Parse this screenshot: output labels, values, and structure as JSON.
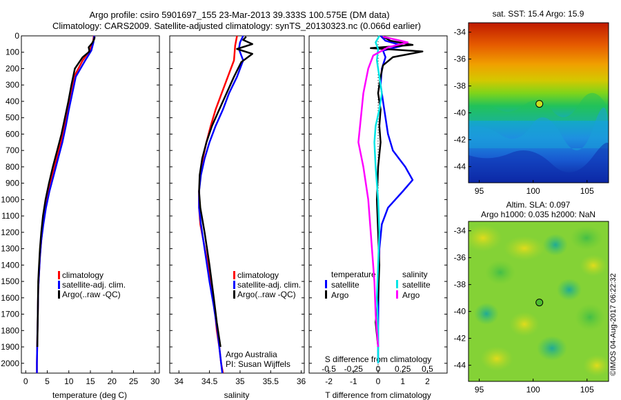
{
  "header": {
    "line1": "Argo profile: csiro 5901697_155 23-Mar-2013 39.333S 100.575E (DM data)",
    "line2": "Climatology: CARS2009. Satellite-adjusted climatology: synTS_20130323.nc (0.066d earlier)"
  },
  "footer": {
    "watermark": "©IMOS 04-Aug-2017 06:22:32",
    "argo_label": "Argo Australia",
    "pi_label": "PI: Susan Wijffels"
  },
  "colors": {
    "climatology": "#ff0000",
    "satellite": "#0000ff",
    "argo": "#000000",
    "salinity_satellite": "#00e5e5",
    "salinity_argo": "#ff00ff"
  },
  "chart_data": [
    {
      "type": "line",
      "panel": "temperature",
      "xlabel": "temperature (deg C)",
      "ylabel": "",
      "xlim": [
        -1,
        31
      ],
      "ylim": [
        2060,
        0
      ],
      "xticks": [
        "0",
        "5",
        "10",
        "15",
        "20",
        "25",
        "30"
      ],
      "yticks": [
        "0",
        "100",
        "200",
        "300",
        "400",
        "500",
        "600",
        "700",
        "800",
        "900",
        "1000",
        "1100",
        "1200",
        "1300",
        "1400",
        "1500",
        "1600",
        "1700",
        "1800",
        "1900",
        "2000"
      ],
      "legend": [
        "climatology",
        "satellite-adj. clim.",
        "Argo(..raw -QC)"
      ],
      "series": [
        {
          "name": "climatology",
          "color": "#ff0000",
          "x": [
            15.8,
            15.6,
            14.8,
            13.2,
            11.2,
            10.4,
            9.7,
            9.0,
            8.2,
            7.2,
            6.2,
            5.3,
            4.6,
            4.0,
            3.6,
            3.3,
            3.1,
            2.9,
            2.8,
            2.7,
            2.6,
            2.6
          ],
          "y": [
            0,
            40,
            90,
            150,
            250,
            350,
            450,
            550,
            650,
            750,
            850,
            950,
            1050,
            1150,
            1250,
            1350,
            1450,
            1550,
            1700,
            1850,
            2000,
            2060
          ]
        },
        {
          "name": "satellite-adj. clim.",
          "color": "#0000ff",
          "x": [
            15.9,
            15.7,
            15.2,
            13.8,
            11.6,
            10.8,
            10.0,
            9.3,
            8.5,
            7.5,
            6.5,
            5.5,
            4.7,
            4.1,
            3.6,
            3.3,
            3.1,
            2.9,
            2.8,
            2.7,
            2.6,
            2.6
          ],
          "y": [
            0,
            40,
            90,
            150,
            250,
            350,
            450,
            550,
            650,
            750,
            850,
            950,
            1050,
            1150,
            1250,
            1350,
            1450,
            1550,
            1700,
            1850,
            2000,
            2060
          ]
        },
        {
          "name": "Argo(..raw -QC)",
          "color": "#000000",
          "x": [
            16.0,
            15.9,
            15.4,
            14.6,
            14.8,
            13.2,
            11.4,
            10.6,
            9.9,
            9.1,
            8.3,
            7.3,
            6.3,
            5.4,
            4.6,
            4.0,
            3.6,
            3.3,
            3.1,
            2.9,
            2.8,
            2.7
          ],
          "y": [
            5,
            20,
            45,
            70,
            95,
            130,
            200,
            300,
            400,
            500,
            600,
            700,
            800,
            900,
            1000,
            1100,
            1200,
            1300,
            1400,
            1500,
            1700,
            1900
          ]
        }
      ]
    },
    {
      "type": "line",
      "panel": "salinity",
      "xlabel": "salinity",
      "ylabel": "",
      "xlim": [
        33.85,
        36.05
      ],
      "ylim": [
        2060,
        0
      ],
      "xticks": [
        "34",
        "34.5",
        "35",
        "35.5",
        "36"
      ],
      "legend": [
        "climatology",
        "satellite-adj. clim.",
        "Argo(..raw -QC)"
      ],
      "series": [
        {
          "name": "climatology",
          "color": "#ff0000",
          "x": [
            34.95,
            34.92,
            34.9,
            34.8,
            34.7,
            34.6,
            34.52,
            34.45,
            34.39,
            34.35,
            34.33,
            34.33,
            34.35,
            34.4,
            34.45,
            34.52,
            34.58,
            34.62,
            34.66,
            34.69,
            34.72
          ],
          "y": [
            0,
            60,
            150,
            250,
            350,
            450,
            550,
            650,
            750,
            850,
            950,
            1050,
            1150,
            1250,
            1350,
            1500,
            1650,
            1800,
            1900,
            2000,
            2060
          ]
        },
        {
          "name": "satellite-adj. clim.",
          "color": "#0000ff",
          "x": [
            35.05,
            35.0,
            34.98,
            35.05,
            34.95,
            34.82,
            34.72,
            34.6,
            34.5,
            34.42,
            34.36,
            34.33,
            34.33,
            34.36,
            34.42,
            34.5,
            34.57,
            34.63,
            34.66,
            34.69,
            34.71
          ],
          "y": [
            0,
            40,
            80,
            150,
            250,
            350,
            450,
            550,
            650,
            750,
            850,
            950,
            1050,
            1150,
            1300,
            1500,
            1650,
            1800,
            1900,
            2000,
            2060
          ]
        },
        {
          "name": "Argo(..raw -QC)",
          "color": "#000000",
          "x": [
            35.1,
            35.05,
            35.2,
            34.95,
            35.2,
            35.02,
            34.9,
            34.78,
            34.66,
            34.54,
            34.45,
            34.38,
            34.34,
            34.33,
            34.35,
            34.42,
            34.5,
            34.57,
            34.62,
            34.66,
            34.68
          ],
          "y": [
            5,
            25,
            50,
            80,
            110,
            160,
            250,
            350,
            450,
            550,
            650,
            750,
            850,
            950,
            1050,
            1200,
            1400,
            1600,
            1750,
            1850,
            1900
          ]
        }
      ]
    },
    {
      "type": "line",
      "panel": "difference",
      "xlabel": "T difference from climatology",
      "xlabel2": "S difference from climatology",
      "ylabel": "",
      "xlim": [
        -2.8,
        2.8
      ],
      "ylim": [
        2060,
        0
      ],
      "xticks": [
        "-2",
        "-1",
        "0",
        "1",
        "2"
      ],
      "xticks_salinity": [
        "-0.5",
        "-0.25",
        "0",
        "0.25",
        "0.5"
      ],
      "legend_titles": [
        "temperature",
        "salinity"
      ],
      "legend": [
        "satellite",
        "Argo",
        "satellite",
        "Argo"
      ],
      "series": [
        {
          "name": "satellite",
          "group": "temperature",
          "color": "#0000ff",
          "x": [
            0.1,
            0.3,
            1.0,
            0.2,
            0.3,
            0.15,
            0.1,
            0.2,
            0.3,
            0.4,
            0.6,
            1.1,
            1.4,
            1.0,
            0.4,
            0.15,
            0.05,
            0.02,
            0.0,
            0.0
          ],
          "y": [
            0,
            30,
            60,
            90,
            130,
            200,
            300,
            400,
            500,
            600,
            700,
            800,
            880,
            950,
            1050,
            1150,
            1300,
            1500,
            1800,
            2000
          ]
        },
        {
          "name": "Argo",
          "group": "temperature",
          "color": "#000000",
          "x": [
            0.2,
            0.5,
            1.4,
            -0.3,
            1.8,
            0.6,
            0.2,
            0.1,
            0.0,
            0.1,
            0.05,
            0.1,
            0.0,
            -0.05,
            0.0,
            0.05,
            0.0,
            -0.1,
            0.0
          ],
          "y": [
            5,
            30,
            55,
            75,
            95,
            130,
            180,
            250,
            350,
            450,
            550,
            650,
            800,
            1000,
            1200,
            1400,
            1600,
            1750,
            1900
          ]
        },
        {
          "name": "satellite",
          "group": "salinity",
          "color": "#00e5e5",
          "x": [
            0.05,
            -0.1,
            0.0,
            -0.05,
            0.05,
            0.15,
            0.05,
            -0.1,
            -0.15,
            -0.1,
            0.0,
            0.05,
            0.0,
            -0.05,
            0.0,
            0.0
          ],
          "y": [
            0,
            40,
            80,
            150,
            250,
            350,
            450,
            550,
            650,
            800,
            1000,
            1200,
            1400,
            1600,
            1800,
            2000
          ]
        },
        {
          "name": "Argo",
          "group": "salinity",
          "color": "#ff00ff",
          "x": [
            0.2,
            1.2,
            0.4,
            -0.2,
            -0.4,
            -0.6,
            -0.7,
            -0.8,
            -0.6,
            -0.4,
            -0.3,
            -0.15,
            -0.1,
            0.0
          ],
          "y": [
            5,
            40,
            70,
            120,
            200,
            350,
            500,
            650,
            800,
            1000,
            1200,
            1500,
            1700,
            1900
          ]
        }
      ]
    },
    {
      "type": "heatmap",
      "panel": "sst_map",
      "title": "sat. SST: 15.4  Argo: 15.9",
      "xlim": [
        94,
        107
      ],
      "ylim": [
        -45.2,
        -33.3
      ],
      "xticks": [
        "95",
        "100",
        "105"
      ],
      "yticks": [
        "-34",
        "-36",
        "-38",
        "-40",
        "-42",
        "-44"
      ],
      "marker": {
        "lon": 100.575,
        "lat": -39.333
      }
    },
    {
      "type": "heatmap",
      "panel": "sla_map",
      "title": "Altim. SLA: 0.097",
      "subtitle": "Argo h1000: 0.035 h2000: NaN",
      "xlim": [
        94,
        107
      ],
      "ylim": [
        -45.2,
        -33.3
      ],
      "xticks": [
        "95",
        "100",
        "105"
      ],
      "yticks": [
        "-34",
        "-36",
        "-38",
        "-40",
        "-42",
        "-44"
      ],
      "marker": {
        "lon": 100.575,
        "lat": -39.333
      }
    }
  ]
}
